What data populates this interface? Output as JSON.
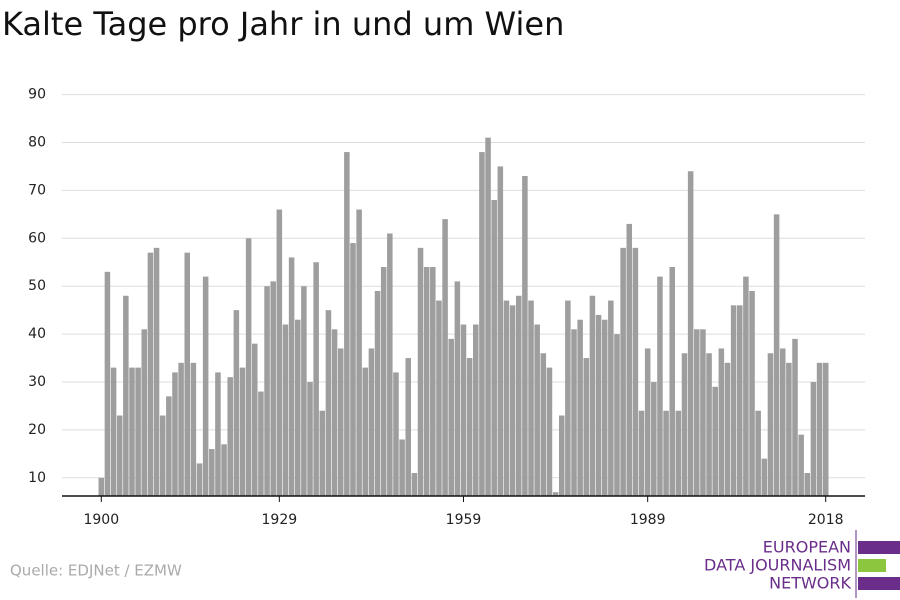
{
  "chart_data": {
    "type": "bar",
    "title": "Kalte Tage pro Jahr in und um Wien",
    "source": "Quelle: EDJNet / EZMW",
    "logo": [
      "EUROPEAN",
      "DATA JOURNALISM",
      "NETWORK"
    ],
    "color": "#9e9e9e",
    "x": [
      1900,
      1901,
      1902,
      1903,
      1904,
      1905,
      1906,
      1907,
      1908,
      1909,
      1910,
      1911,
      1912,
      1913,
      1914,
      1915,
      1916,
      1917,
      1918,
      1919,
      1920,
      1921,
      1922,
      1923,
      1924,
      1925,
      1926,
      1927,
      1928,
      1929,
      1930,
      1931,
      1932,
      1933,
      1934,
      1935,
      1936,
      1937,
      1938,
      1939,
      1940,
      1941,
      1942,
      1943,
      1944,
      1945,
      1946,
      1947,
      1948,
      1949,
      1950,
      1951,
      1952,
      1953,
      1954,
      1955,
      1956,
      1957,
      1958,
      1959,
      1960,
      1961,
      1962,
      1963,
      1964,
      1965,
      1966,
      1967,
      1968,
      1969,
      1970,
      1971,
      1972,
      1973,
      1974,
      1975,
      1976,
      1977,
      1978,
      1979,
      1980,
      1981,
      1982,
      1983,
      1984,
      1985,
      1986,
      1987,
      1988,
      1989,
      1990,
      1991,
      1992,
      1993,
      1994,
      1995,
      1996,
      1997,
      1998,
      1999,
      2000,
      2001,
      2002,
      2003,
      2004,
      2005,
      2006,
      2007,
      2008,
      2009,
      2010,
      2011,
      2012,
      2013,
      2014,
      2015,
      2016,
      2017,
      2018
    ],
    "values": [
      10,
      53,
      33,
      23,
      48,
      33,
      33,
      41,
      57,
      58,
      23,
      27,
      32,
      34,
      57,
      34,
      13,
      52,
      16,
      32,
      17,
      31,
      45,
      33,
      60,
      38,
      28,
      50,
      51,
      66,
      42,
      56,
      43,
      50,
      30,
      55,
      24,
      45,
      41,
      37,
      78,
      59,
      66,
      33,
      37,
      49,
      54,
      61,
      32,
      18,
      35,
      11,
      58,
      54,
      54,
      47,
      64,
      39,
      51,
      42,
      35,
      42,
      78,
      81,
      68,
      75,
      47,
      46,
      48,
      73,
      47,
      42,
      36,
      33,
      7,
      23,
      47,
      41,
      43,
      35,
      48,
      44,
      43,
      47,
      40,
      58,
      63,
      58,
      24,
      37,
      30,
      52,
      24,
      54,
      24,
      36,
      74,
      41,
      41,
      36,
      29,
      37,
      34,
      46,
      46,
      52,
      49,
      24,
      14,
      36,
      65,
      37,
      34,
      39,
      19,
      11,
      30,
      34,
      34
    ],
    "xlim": [
      1893.6,
      2024.4
    ],
    "xticks": [
      1900,
      1929,
      1959,
      1989,
      2018
    ],
    "ylim": [
      6.2,
      92
    ],
    "yticks": [
      10,
      20,
      30,
      40,
      50,
      60,
      70,
      80,
      90
    ],
    "grid": true
  }
}
